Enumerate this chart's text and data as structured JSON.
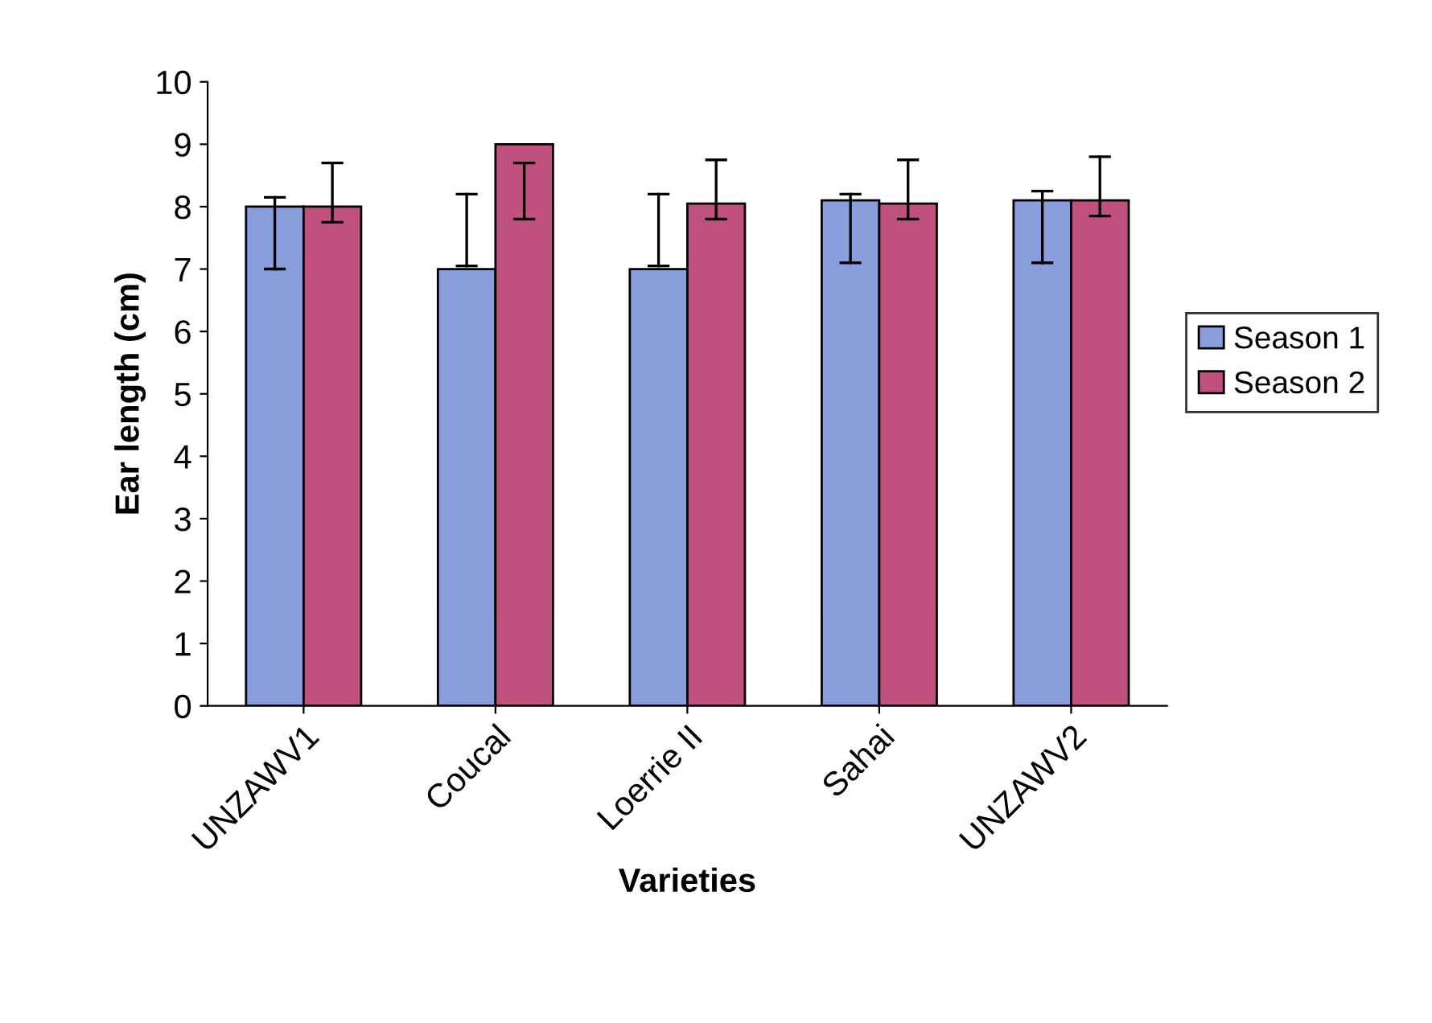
{
  "chart_data": {
    "type": "bar",
    "xlabel": "Varieties",
    "ylabel": "Ear length (cm)",
    "categories": [
      "UNZAWV1",
      "Coucal",
      "Loerrie II",
      "Sahai",
      "UNZAWV2"
    ],
    "series": [
      {
        "name": "Season 1",
        "color": "#8a9ede",
        "values": [
          8,
          7,
          7,
          8.1,
          8.1
        ],
        "errors": [
          [
            7.0,
            8.15
          ],
          [
            7.05,
            8.2
          ],
          [
            7.05,
            8.2
          ],
          [
            7.1,
            8.2
          ],
          [
            7.1,
            8.25
          ]
        ]
      },
      {
        "name": "Season 2",
        "color": "#c0507e",
        "values": [
          8,
          9,
          8.05,
          8.05,
          8.1
        ],
        "errors": [
          [
            7.75,
            8.7
          ],
          [
            7.8,
            8.7
          ],
          [
            7.8,
            8.75
          ],
          [
            7.8,
            8.75
          ],
          [
            7.85,
            8.8
          ]
        ]
      }
    ],
    "ylim": [
      0,
      10
    ],
    "yticks": [
      0,
      1,
      2,
      3,
      4,
      5,
      6,
      7,
      8,
      9,
      10
    ],
    "grid": false,
    "legend": "right"
  }
}
